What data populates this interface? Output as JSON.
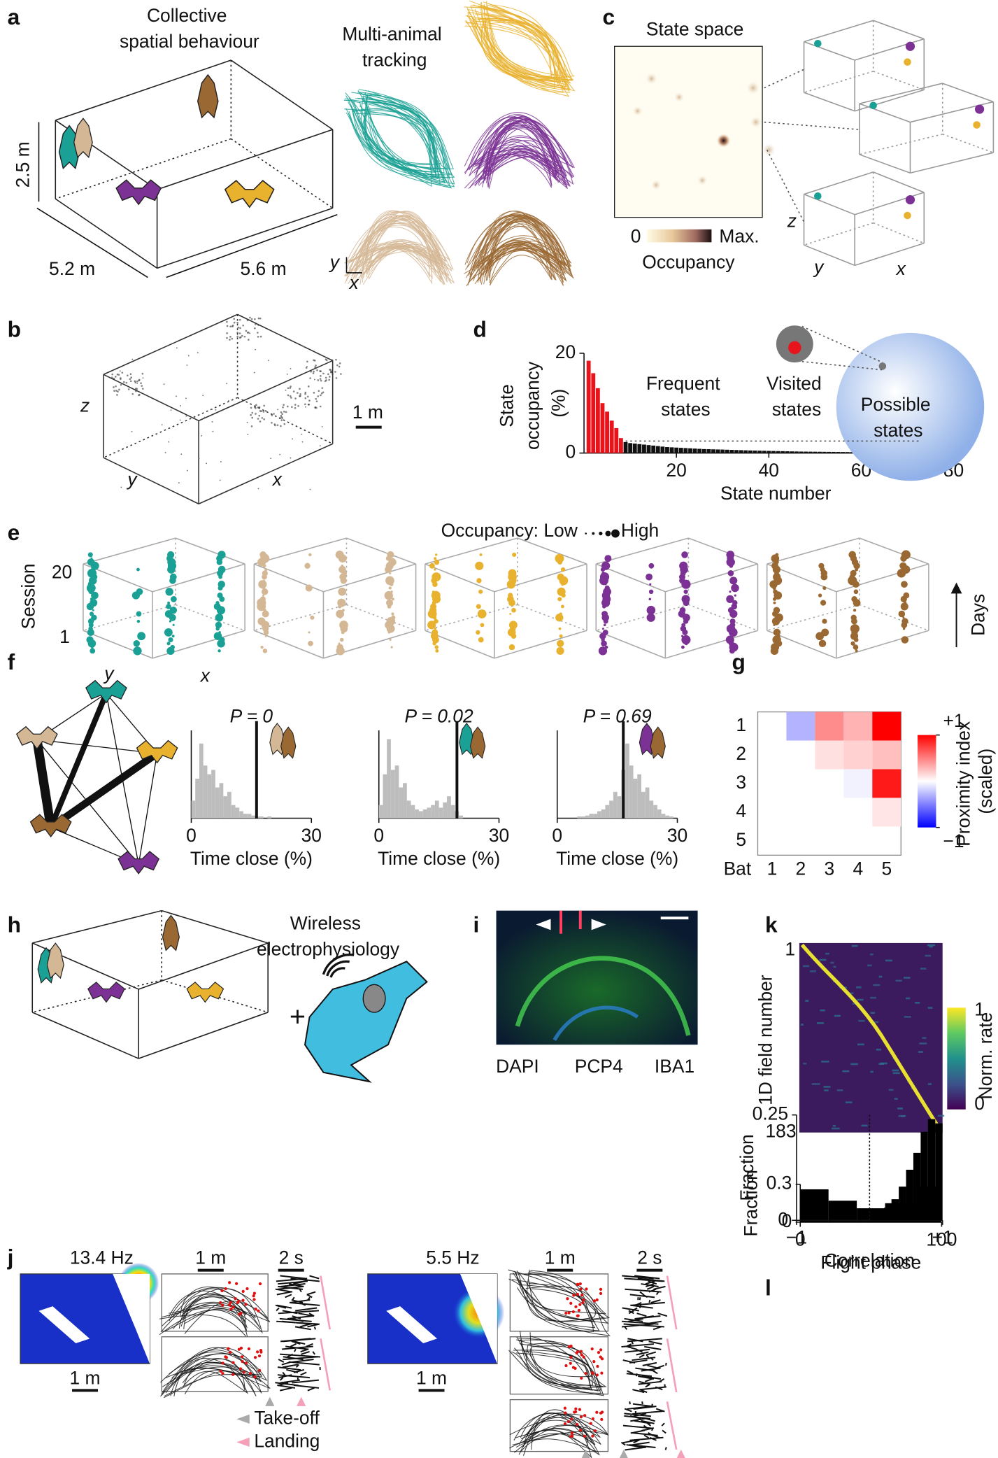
{
  "panel_labels": [
    "a",
    "b",
    "c",
    "d",
    "e",
    "f",
    "g",
    "h",
    "i",
    "j",
    "k",
    "l"
  ],
  "a": {
    "title": "Collective spatial behaviour",
    "tracking": "Multi-animal tracking",
    "height": "2.5 m",
    "width": "5.2 m",
    "length": "5.6 m",
    "axis_y": "y",
    "axis_x": "x"
  },
  "b": {
    "axis_z": "z",
    "axis_y": "y",
    "axis_x": "x",
    "scale": "1 m"
  },
  "c": {
    "title": "State space",
    "min": "0",
    "max": "Max.",
    "colorbar_label": "Occupancy",
    "axis_z": "z",
    "axis_y": "y",
    "axis_x": "x"
  },
  "e": {
    "legend_low": "Occupancy: Low",
    "legend_high": "High",
    "y_label": "Session",
    "ticks": [
      20,
      1
    ],
    "axis_y": "y",
    "axis_x": "x",
    "arrow_label": "Days"
  },
  "h": {
    "label": "Wireless electrophysiology",
    "plus": "+"
  },
  "i": {
    "stains": [
      "DAPI",
      "PCP4",
      "IBA1"
    ]
  },
  "j": {
    "rates": [
      "13.4 Hz",
      "5.5 Hz"
    ],
    "scales": [
      "1 m",
      "2 s",
      "1 m",
      "2 s",
      "1 m",
      "1 m"
    ],
    "legend": [
      "Take-off",
      "Landing"
    ]
  },
  "k_map": {
    "ticks": [
      1,
      183
    ],
    "y_label": "1D field number",
    "colorbar_ticks": [
      1,
      0
    ],
    "colorbar_label": "Norm. rate"
  },
  "chart_data": [
    {
      "type": "bar",
      "y_label": "State occupancy (%)",
      "x_label": "State number",
      "xlim": [
        0,
        83
      ],
      "ylim": [
        0,
        20
      ],
      "xticks": [
        20,
        40,
        60,
        80
      ],
      "yticks": [
        0,
        20
      ],
      "series": [
        {
          "name": "Frequent states",
          "color": "#e8141c",
          "x": [
            1,
            2,
            3,
            4,
            5,
            6,
            7,
            8
          ],
          "values": [
            18.5,
            16,
            13,
            10,
            8.3,
            6.5,
            5,
            3
          ]
        },
        {
          "name": "Visited states",
          "color": "#111111",
          "x": [
            9,
            10,
            11,
            12,
            13,
            14,
            15,
            16,
            17,
            18,
            19,
            20,
            21,
            22,
            23,
            24,
            25,
            26,
            27,
            28,
            29,
            30,
            31,
            32,
            33,
            34,
            35,
            36,
            37,
            38,
            39,
            40,
            41,
            42,
            43,
            44,
            45,
            46,
            47,
            48,
            49,
            50,
            51,
            52,
            53,
            54,
            55,
            56,
            57,
            58,
            59,
            60,
            61,
            62,
            63,
            64,
            65
          ],
          "values": [
            2.2,
            2.0,
            1.9,
            1.8,
            1.7,
            1.6,
            1.5,
            1.4,
            1.3,
            1.2,
            1.15,
            1.1,
            1.05,
            1.0,
            0.95,
            0.9,
            0.85,
            0.8,
            0.78,
            0.75,
            0.72,
            0.7,
            0.67,
            0.64,
            0.61,
            0.58,
            0.55,
            0.52,
            0.5,
            0.48,
            0.46,
            0.44,
            0.42,
            0.4,
            0.38,
            0.36,
            0.34,
            0.32,
            0.3,
            0.29,
            0.28,
            0.27,
            0.26,
            0.25,
            0.24,
            0.23,
            0.22,
            0.21,
            0.2,
            0.19,
            0.18,
            0.17,
            0.16,
            0.15,
            0.14,
            0.12,
            0.1
          ]
        }
      ],
      "annotation": "Possible states",
      "annotation_color": "#1a2bd6"
    },
    {
      "type": "histogram",
      "title": "P = 0",
      "x_label": "Time close (%)",
      "color": "#bdbdbd",
      "bins": [
        0,
        1,
        2,
        3,
        4,
        5,
        6,
        7,
        8,
        9,
        10,
        11,
        12,
        13,
        14,
        15,
        16,
        17,
        18,
        19,
        20,
        21,
        22,
        23,
        24,
        25,
        26,
        27,
        28,
        29,
        30
      ],
      "counts": [
        0.2,
        0.45,
        0.85,
        0.6,
        0.5,
        0.55,
        0.35,
        0.4,
        0.25,
        0.3,
        0.15,
        0.12,
        0.08,
        0.05,
        0.05,
        0.03,
        0.02,
        0.02,
        0,
        0.02,
        0,
        0,
        0,
        0,
        0,
        0,
        0,
        0,
        0,
        0
      ],
      "xlim": [
        0,
        30
      ],
      "ylim": [
        0,
        1
      ],
      "xticks": [
        0,
        30
      ],
      "observed": 16.3
    },
    {
      "type": "histogram",
      "title": "P = 0.02",
      "x_label": "Time close (%)",
      "color": "#bdbdbd",
      "bins": [
        0,
        1,
        2,
        3,
        4,
        5,
        6,
        7,
        8,
        9,
        10,
        11,
        12,
        13,
        14,
        15,
        16,
        17,
        18,
        19,
        20,
        21,
        22,
        23,
        24,
        25,
        26,
        27,
        28,
        29,
        30
      ],
      "counts": [
        0.15,
        0.5,
        0.9,
        0.55,
        0.6,
        0.35,
        0.4,
        0.2,
        0.15,
        0.1,
        0.08,
        0.1,
        0.12,
        0.15,
        0.2,
        0.12,
        0.18,
        0.25,
        0.15,
        0.08,
        0.03,
        0,
        0,
        0,
        0,
        0,
        0,
        0,
        0,
        0
      ],
      "xlim": [
        0,
        30
      ],
      "ylim": [
        0,
        1
      ],
      "xticks": [
        0,
        30
      ],
      "observed": 19.5
    },
    {
      "type": "histogram",
      "title": "P = 0.69",
      "x_label": "Time close (%)",
      "color": "#bdbdbd",
      "bins": [
        0,
        1,
        2,
        3,
        4,
        5,
        6,
        7,
        8,
        9,
        10,
        11,
        12,
        13,
        14,
        15,
        16,
        17,
        18,
        19,
        20,
        21,
        22,
        23,
        24,
        25,
        26,
        27,
        28,
        29,
        30
      ],
      "counts": [
        0,
        0,
        0,
        0,
        0,
        0.02,
        0.02,
        0.03,
        0.05,
        0.05,
        0.08,
        0.1,
        0.15,
        0.2,
        0.3,
        0.25,
        0.55,
        0.85,
        0.6,
        0.45,
        0.5,
        0.3,
        0.35,
        0.2,
        0.15,
        0.1,
        0.05,
        0.03,
        0.02,
        0
      ],
      "xlim": [
        0,
        30
      ],
      "ylim": [
        0,
        1
      ],
      "xticks": [
        0,
        30
      ],
      "observed": 16.5
    },
    {
      "type": "heatmap",
      "rows": [
        1,
        2,
        3,
        4,
        5
      ],
      "columns": [
        1,
        2,
        3,
        4,
        5
      ],
      "x_label": "Bat",
      "values": [
        [
          null,
          -0.3,
          0.45,
          0.3,
          1
        ],
        [
          null,
          null,
          0.12,
          0.18,
          0.25
        ],
        [
          null,
          null,
          null,
          -0.05,
          0.9
        ],
        [
          null,
          null,
          null,
          null,
          0.1
        ],
        [
          null,
          null,
          null,
          null,
          null
        ]
      ],
      "label_colors": [
        "#1aa094",
        "#d4b896",
        "#e8b22e",
        "#7b3294",
        "#9a6832"
      ],
      "colormap": [
        "#0000ff",
        "#ffffff",
        "#ff0000"
      ],
      "vlim": [
        -1,
        1
      ],
      "colorbar_ticks": [
        {
          "value": 1,
          "label": "+1"
        },
        {
          "value": -1,
          "label": "−1"
        }
      ],
      "colorbar_label": "Proximity index (scaled)"
    },
    {
      "type": "histogram",
      "y_label": "Fraction",
      "x_label": "Flight phase",
      "color": "#000000",
      "bins": [
        0,
        20,
        40,
        60,
        80,
        100
      ],
      "counts": [
        0.26,
        0.17,
        0.11,
        0.15,
        0.28
      ],
      "xlim": [
        0,
        100
      ],
      "ylim": [
        0,
        0.3
      ],
      "xticks": [
        0,
        100
      ],
      "yticks": [
        0,
        0.3
      ]
    },
    {
      "type": "histogram",
      "y_label": "Fraction",
      "x_label": "Correlation",
      "color": "#000000",
      "bins": [
        -1,
        -0.9,
        -0.8,
        -0.7,
        -0.6,
        -0.5,
        -0.4,
        -0.3,
        -0.2,
        -0.1,
        0,
        0.1,
        0.2,
        0.3,
        0.4,
        0.5,
        0.6,
        0.7,
        0.8,
        0.9,
        1
      ],
      "counts": [
        0,
        0,
        0,
        0,
        0,
        0,
        0,
        0,
        0,
        0,
        0.01,
        0.02,
        0.03,
        0.05,
        0.08,
        0.12,
        0.16,
        0.21,
        0.24,
        0.23
      ],
      "xlim": [
        -1,
        1
      ],
      "ylim": [
        0,
        0.25
      ],
      "xticks": [
        {
          "value": -1,
          "label": "−1"
        },
        {
          "value": 1,
          "label": "+1"
        }
      ],
      "yticks": [
        0,
        0.25
      ],
      "reference_line": 0
    }
  ]
}
